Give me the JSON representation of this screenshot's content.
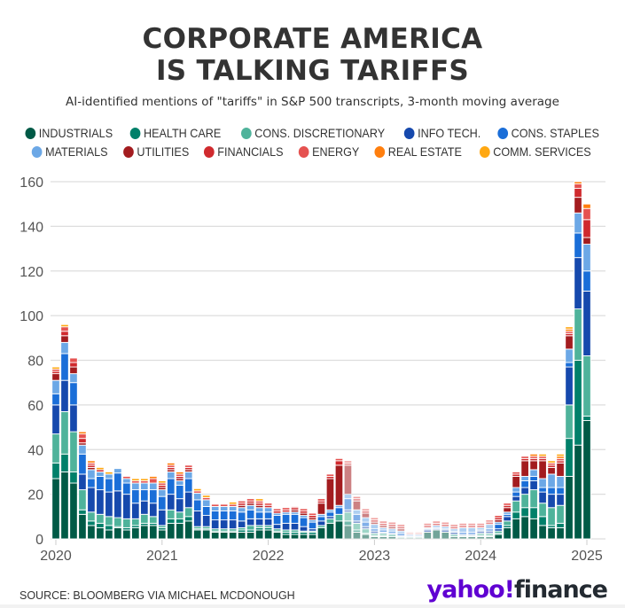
{
  "header": {
    "title_line1": "CORPORATE AMERICA",
    "title_line2": "IS TALKING TARIFFS",
    "subtitle": "AI-identified mentions of \"tariffs\" in S&P 500 transcripts, 3-month moving average"
  },
  "footer": {
    "source": "SOURCE: BLOOMBERG VIA MICHAEL MCDONOUGH",
    "logo_part1": "yahoo!",
    "logo_part2": "finance"
  },
  "chart_data": {
    "type": "bar",
    "stacked": true,
    "title": "CORPORATE AMERICA IS TALKING TARIFFS",
    "subtitle": "AI-identified mentions of \"tariffs\" in S&P 500 transcripts, 3-month moving average",
    "xlabel": "",
    "ylabel": "",
    "ylim": [
      0,
      160
    ],
    "yticks": [
      0,
      20,
      40,
      60,
      80,
      100,
      120,
      140,
      160
    ],
    "xticks": [
      "2020",
      "2021",
      "2022",
      "2023",
      "2024",
      "2025"
    ],
    "grid": true,
    "legend_position": "top",
    "x": [
      "2020-01",
      "2020-02",
      "2020-03",
      "2020-04",
      "2020-05",
      "2020-06",
      "2020-07",
      "2020-08",
      "2020-09",
      "2020-10",
      "2020-11",
      "2020-12",
      "2021-01",
      "2021-02",
      "2021-03",
      "2021-04",
      "2021-05",
      "2021-06",
      "2021-07",
      "2021-08",
      "2021-09",
      "2021-10",
      "2021-11",
      "2021-12",
      "2022-01",
      "2022-02",
      "2022-03",
      "2022-04",
      "2022-05",
      "2022-06",
      "2022-07",
      "2022-08",
      "2022-09",
      "2022-10",
      "2022-11",
      "2022-12",
      "2023-01",
      "2023-02",
      "2023-03",
      "2023-04",
      "2023-05",
      "2023-06",
      "2023-07",
      "2023-08",
      "2023-09",
      "2023-10",
      "2023-11",
      "2023-12",
      "2024-01",
      "2024-02",
      "2024-03",
      "2024-04",
      "2024-05",
      "2024-06",
      "2024-07",
      "2024-08",
      "2024-09",
      "2024-10",
      "2024-11",
      "2024-12",
      "2025-01"
    ],
    "series": [
      {
        "name": "INDUSTRIALS",
        "color": "#005a46",
        "values": [
          27,
          30,
          25,
          11,
          6,
          5,
          4,
          5,
          4,
          5,
          6,
          6,
          4,
          7,
          7,
          8,
          4,
          4,
          3,
          3,
          3,
          3,
          3,
          4,
          4,
          3,
          2,
          2,
          2,
          2,
          5,
          7,
          8,
          6,
          3,
          2,
          1,
          1,
          1,
          0.5,
          0.5,
          0.5,
          3,
          4,
          3,
          1,
          1,
          1,
          1,
          1,
          2,
          5,
          9,
          10,
          9,
          6,
          5,
          5,
          28,
          42,
          53
        ]
      },
      {
        "name": "HEALTH CARE",
        "color": "#00806a",
        "values": [
          7,
          8,
          5,
          2,
          2,
          2,
          2,
          0.5,
          1,
          1,
          1,
          1,
          1,
          2,
          2,
          2,
          0.5,
          0.5,
          0.5,
          0.5,
          0.5,
          1,
          1,
          1,
          1,
          0.5,
          1,
          1,
          1,
          1,
          0,
          0,
          0,
          2,
          1,
          0.5,
          0.5,
          0.5,
          0,
          0,
          0,
          0,
          0,
          0,
          0,
          0,
          0,
          0,
          0.5,
          0.5,
          0.5,
          1,
          3,
          4,
          5,
          4,
          1,
          2,
          17,
          38,
          2
        ]
      },
      {
        "name": "CONS. DISCRETIONARY",
        "color": "#4fb39b",
        "values": [
          13,
          19,
          18,
          9,
          4,
          4,
          4,
          4,
          4,
          3,
          4,
          3,
          1,
          4,
          3,
          4,
          1,
          1,
          1,
          1,
          1,
          1,
          2,
          1,
          1,
          1,
          1,
          1,
          0.5,
          0.5,
          1,
          2,
          3,
          4,
          3,
          2,
          1,
          1,
          1,
          0.5,
          0.5,
          0.5,
          0,
          0,
          0,
          1,
          0.5,
          0.5,
          1,
          1,
          1,
          2,
          5,
          6,
          8,
          6,
          8,
          8,
          15,
          23,
          27
        ]
      },
      {
        "name": "INFO TECH.",
        "color": "#1649ad",
        "values": [
          13,
          14,
          12,
          7,
          11,
          11,
          11,
          12,
          11,
          7,
          6,
          6,
          7,
          7,
          6,
          7,
          7,
          5,
          4,
          4,
          4,
          3,
          3,
          3,
          3,
          2,
          3,
          3,
          2,
          1,
          2,
          1,
          0,
          1,
          1,
          1,
          1,
          0.5,
          0.5,
          0.5,
          0,
          0,
          1,
          0.5,
          1,
          1,
          0.5,
          0.5,
          1,
          1,
          1,
          2,
          2,
          3,
          4,
          5,
          6,
          5,
          17,
          23,
          29
        ]
      },
      {
        "name": "CONS. STAPLES",
        "color": "#1a6ed8",
        "values": [
          5,
          12,
          10,
          9,
          4,
          6,
          6,
          8,
          5,
          6,
          5,
          6,
          6,
          7,
          6,
          6,
          5,
          4,
          4,
          4,
          4,
          4,
          4,
          3,
          3,
          4,
          4,
          4,
          4,
          3,
          2,
          2,
          3,
          5,
          3,
          2,
          1,
          1,
          1,
          1,
          0.5,
          0.5,
          0.5,
          0.5,
          0.5,
          0.5,
          1,
          1,
          0.5,
          1,
          2,
          1,
          2,
          3,
          2,
          2,
          3,
          3,
          2,
          11,
          9
        ]
      },
      {
        "name": "MATERIALS",
        "color": "#6ca8e6",
        "values": [
          6,
          5,
          4,
          4,
          4,
          2,
          2,
          2,
          2,
          3,
          3,
          3,
          3,
          3,
          2,
          3,
          3,
          3,
          2,
          2,
          2,
          2,
          2,
          2,
          2,
          1,
          1,
          1,
          1,
          1,
          1,
          1,
          1,
          2,
          2,
          2,
          2,
          1,
          1,
          1,
          0.5,
          0.5,
          0.5,
          1,
          1,
          1,
          2,
          2,
          1,
          2,
          1,
          1,
          2,
          2,
          3,
          4,
          6,
          5,
          6,
          9,
          12
        ]
      },
      {
        "name": "UTILITIES",
        "color": "#a31c1f",
        "values": [
          3,
          3,
          3,
          1,
          1,
          0,
          0,
          0,
          0,
          0,
          0,
          0,
          1,
          1,
          1,
          1,
          0,
          0,
          0,
          0,
          0,
          1,
          1,
          1,
          0,
          0,
          0,
          1,
          1,
          1,
          5,
          14,
          18,
          13,
          4,
          2,
          1,
          1,
          1,
          1,
          0,
          0,
          0,
          0,
          0,
          0,
          0,
          0,
          0,
          0,
          1,
          2,
          5,
          7,
          4,
          8,
          3,
          6,
          6,
          7,
          3
        ]
      },
      {
        "name": "FINANCIALS",
        "color": "#d02a2e",
        "values": [
          1,
          2,
          2,
          2,
          1,
          1,
          0,
          0,
          0,
          0,
          0,
          0,
          1,
          1,
          1,
          1,
          0,
          0,
          0,
          0,
          0,
          1,
          1,
          1,
          1,
          1,
          1,
          1,
          1,
          1,
          1,
          1,
          2,
          1,
          1,
          1,
          1,
          1,
          1,
          1,
          0.5,
          0.5,
          1,
          1,
          1,
          1,
          1,
          1,
          1,
          1,
          1,
          1,
          1,
          1,
          1,
          1,
          1,
          1,
          1,
          4,
          8
        ]
      },
      {
        "name": "ENERGY",
        "color": "#e55250",
        "values": [
          1,
          2,
          2,
          2,
          1,
          0,
          0,
          0,
          1,
          1,
          1,
          2,
          1,
          1,
          1,
          1,
          1,
          1,
          1,
          1,
          1,
          1,
          1,
          1,
          1,
          1,
          1,
          0.5,
          1,
          1,
          1,
          1,
          1,
          1,
          1,
          1,
          1,
          1,
          1,
          1,
          0.5,
          0.5,
          1,
          1,
          1,
          1,
          1,
          1,
          1,
          1,
          1,
          1,
          1,
          1,
          1,
          1,
          1,
          1,
          1,
          2,
          5
        ]
      },
      {
        "name": "REAL ESTATE",
        "color": "#ff7f0e",
        "values": [
          0,
          0,
          0,
          1,
          1,
          0,
          0,
          0,
          0,
          0,
          0,
          1,
          0,
          1,
          1,
          0,
          0,
          0,
          0,
          0,
          0,
          0,
          0,
          0,
          0,
          0,
          0,
          0,
          0,
          0,
          0,
          0,
          0,
          0,
          0,
          0,
          0,
          0,
          0,
          0,
          0,
          0,
          0,
          0,
          0,
          0,
          0,
          0,
          0,
          0,
          0,
          0,
          0,
          0,
          1,
          0,
          0,
          1,
          1,
          1,
          2
        ]
      },
      {
        "name": "COMM. SERVICES",
        "color": "#ffa812",
        "values": [
          1,
          1,
          0,
          0,
          0,
          1,
          1,
          0,
          0,
          1,
          1,
          0,
          1,
          0,
          0,
          0,
          1,
          1,
          0,
          0,
          1,
          0,
          0,
          1,
          0,
          0,
          0,
          0,
          0,
          0,
          0,
          0,
          0,
          0,
          0,
          0,
          0,
          0,
          0,
          0,
          0,
          0,
          0,
          0,
          0,
          0,
          0,
          0,
          0,
          0,
          0,
          0,
          0,
          0,
          0,
          1,
          1,
          1,
          1,
          0,
          0
        ]
      }
    ],
    "faded_range": [
      "2022-10",
      "2024-02"
    ]
  }
}
